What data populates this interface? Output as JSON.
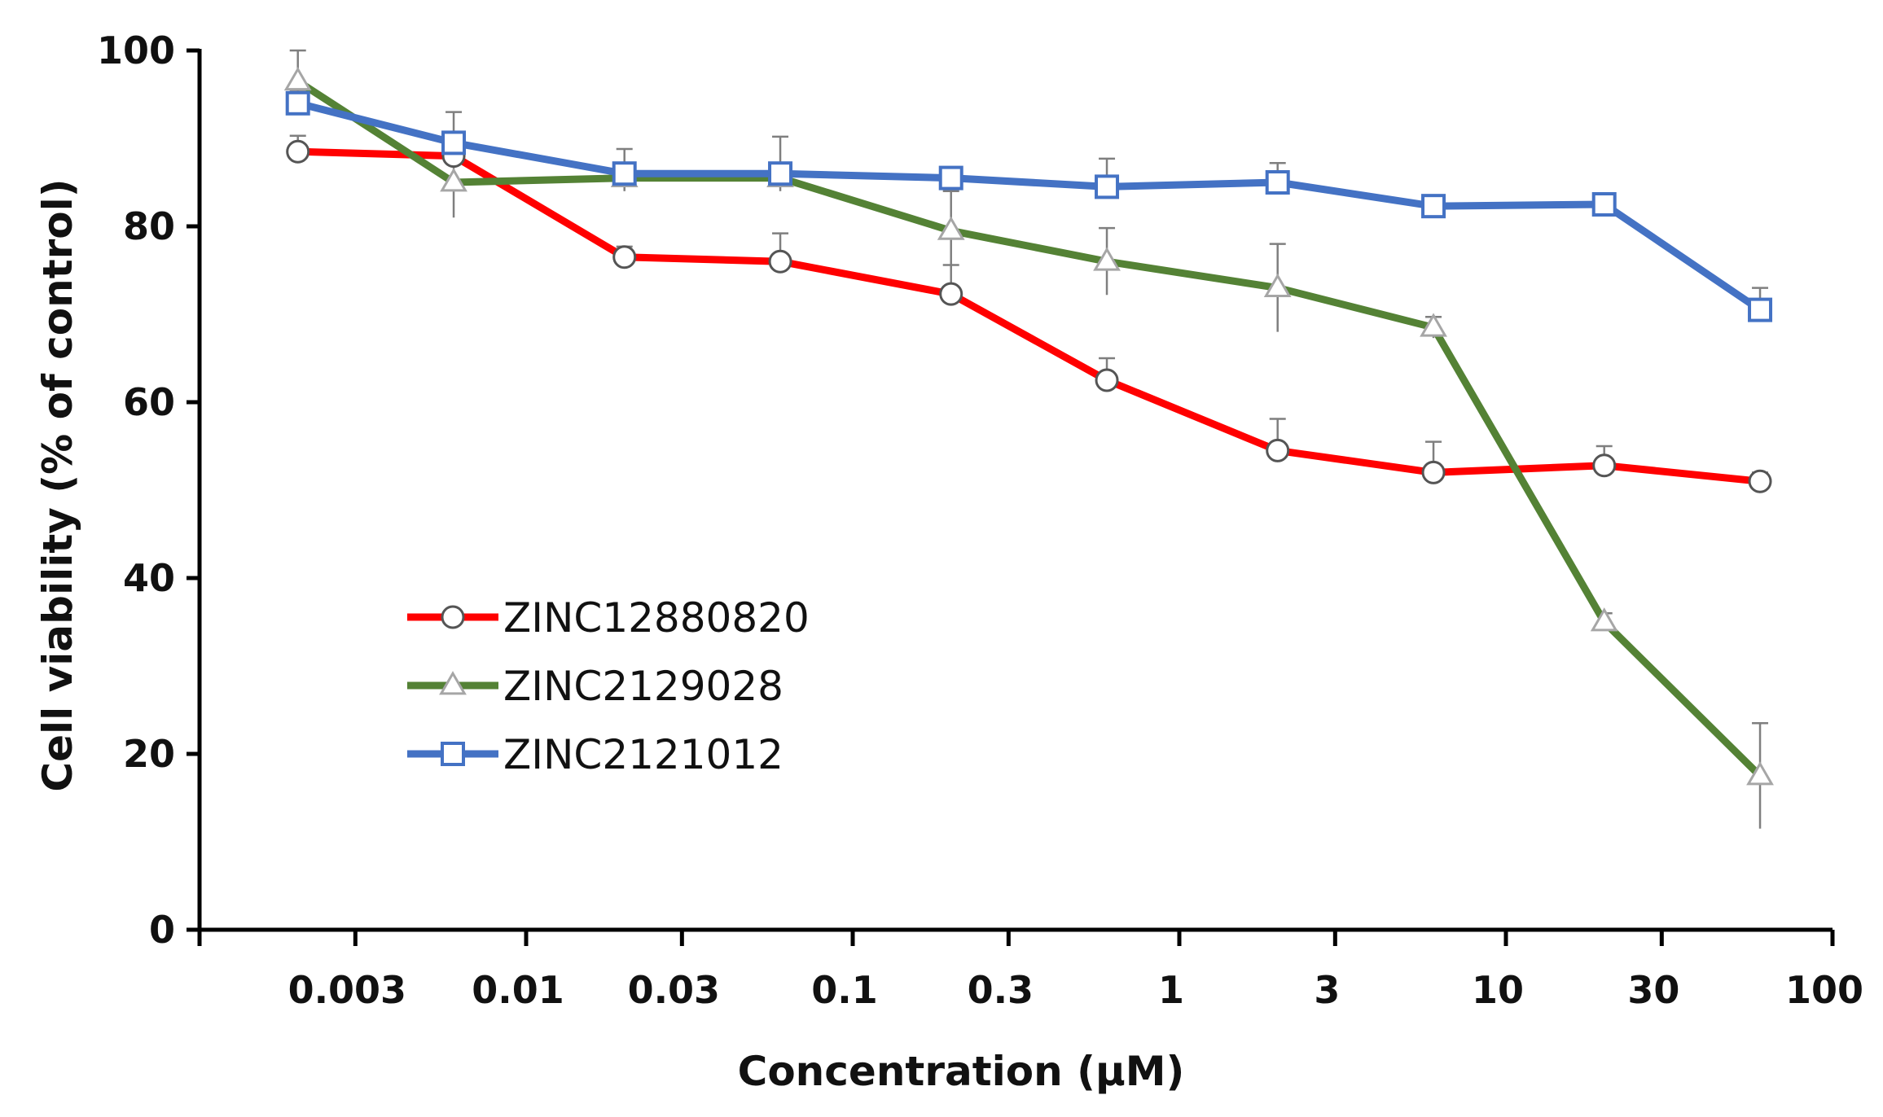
{
  "chart_data": {
    "type": "line",
    "title": "",
    "xlabel": "Concentration (µM)",
    "ylabel": "Cell viability (% of control)",
    "x_scale": "log",
    "xlim": [
      0.001,
      100
    ],
    "ylim": [
      0,
      100
    ],
    "x_ticks": [
      0.003,
      0.01,
      0.03,
      0.1,
      0.3,
      1,
      3,
      10,
      30,
      100
    ],
    "x_tick_labels": [
      "0.003",
      "0.01",
      "0.03",
      "0.1",
      "0.3",
      "1",
      "3",
      "10",
      "30",
      "100"
    ],
    "y_ticks": [
      0,
      20,
      40,
      60,
      80,
      100
    ],
    "y_tick_labels": [
      "0",
      "20",
      "40",
      "60",
      "80",
      "100"
    ],
    "grid": false,
    "legend_position": "center-left",
    "x": [
      0.002,
      0.006,
      0.02,
      0.06,
      0.2,
      0.6,
      2,
      6,
      20,
      60
    ],
    "series": [
      {
        "name": "ZINC12880820",
        "color": "#ff0000",
        "marker": "circle",
        "values": [
          88.5,
          88.0,
          76.5,
          76.0,
          72.3,
          62.5,
          54.5,
          52.0,
          52.8,
          51.0
        ],
        "errors": [
          1.8,
          1.5,
          1.2,
          3.2,
          3.3,
          2.5,
          3.6,
          3.5,
          2.2,
          1.0
        ]
      },
      {
        "name": "ZINC2129028",
        "color": "#548235",
        "marker": "triangle",
        "values": [
          96.5,
          85.0,
          85.5,
          85.5,
          79.5,
          76.0,
          73.0,
          68.5,
          35.0,
          17.5
        ],
        "errors": [
          3.5,
          4.0,
          1.5,
          1.5,
          4.5,
          3.8,
          5.0,
          1.2,
          1.0,
          6.0
        ]
      },
      {
        "name": "ZINC2121012",
        "color": "#4472c4",
        "marker": "square",
        "values": [
          94.0,
          89.5,
          86.0,
          86.0,
          85.5,
          84.5,
          85.0,
          82.3,
          82.5,
          70.5
        ],
        "errors": [
          1.5,
          3.5,
          2.8,
          4.2,
          1.0,
          3.2,
          2.2,
          1.2,
          0.5,
          2.5
        ]
      }
    ]
  }
}
